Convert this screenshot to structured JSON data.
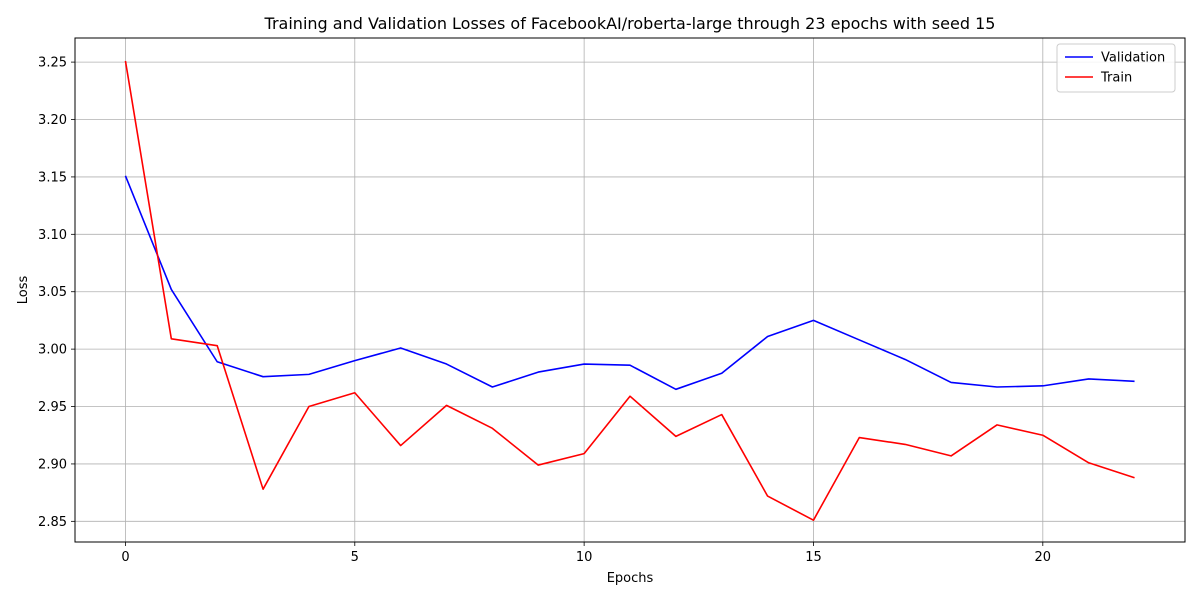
{
  "chart_data": {
    "type": "line",
    "title": "Training and Validation Losses of FacebookAI/roberta-large through 23 epochs with seed 15",
    "xlabel": "Epochs",
    "ylabel": "Loss",
    "x": [
      0,
      1,
      2,
      3,
      4,
      5,
      6,
      7,
      8,
      9,
      10,
      11,
      12,
      13,
      14,
      15,
      16,
      17,
      18,
      19,
      20,
      21,
      22
    ],
    "xlim": [
      -1.1,
      23.1
    ],
    "ylim": [
      2.832,
      3.271
    ],
    "xticks": [
      0,
      5,
      10,
      15,
      20
    ],
    "xtick_labels": [
      "0",
      "5",
      "10",
      "15",
      "20"
    ],
    "yticks": [
      2.85,
      2.9,
      2.95,
      3.0,
      3.05,
      3.1,
      3.15,
      3.2,
      3.25
    ],
    "ytick_labels": [
      "2.85",
      "2.90",
      "2.95",
      "3.00",
      "3.05",
      "3.10",
      "3.15",
      "3.20",
      "3.25"
    ],
    "grid": true,
    "legend_position": "top-right",
    "series": [
      {
        "name": "Validation",
        "color": "#0000ff",
        "values": [
          3.151,
          3.052,
          2.989,
          2.976,
          2.978,
          2.99,
          3.001,
          2.987,
          2.967,
          2.98,
          2.987,
          2.986,
          2.965,
          2.979,
          3.011,
          3.025,
          3.008,
          2.991,
          2.971,
          2.967,
          2.968,
          2.974,
          2.972
        ]
      },
      {
        "name": "Train",
        "color": "#ff0000",
        "values": [
          3.251,
          3.009,
          3.003,
          2.878,
          2.95,
          2.962,
          2.916,
          2.951,
          2.931,
          2.899,
          2.909,
          2.959,
          2.924,
          2.943,
          2.872,
          2.851,
          2.923,
          2.917,
          2.907,
          2.934,
          2.925,
          2.901,
          2.888
        ]
      }
    ]
  }
}
